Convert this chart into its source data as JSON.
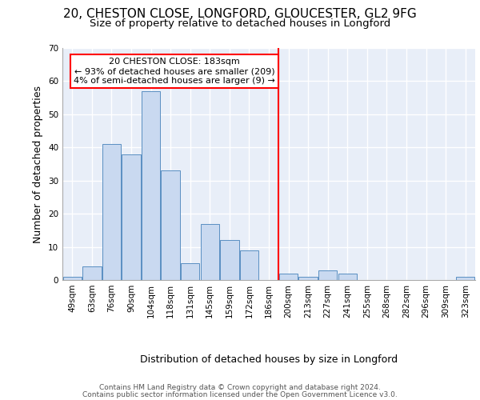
{
  "title_line1": "20, CHESTON CLOSE, LONGFORD, GLOUCESTER, GL2 9FG",
  "title_line2": "Size of property relative to detached houses in Longford",
  "xlabel": "Distribution of detached houses by size in Longford",
  "ylabel": "Number of detached properties",
  "footer_line1": "Contains HM Land Registry data © Crown copyright and database right 2024.",
  "footer_line2": "Contains public sector information licensed under the Open Government Licence v3.0.",
  "bin_labels": [
    "49sqm",
    "63sqm",
    "76sqm",
    "90sqm",
    "104sqm",
    "118sqm",
    "131sqm",
    "145sqm",
    "159sqm",
    "172sqm",
    "186sqm",
    "200sqm",
    "213sqm",
    "227sqm",
    "241sqm",
    "255sqm",
    "268sqm",
    "282sqm",
    "296sqm",
    "309sqm",
    "323sqm"
  ],
  "bar_values": [
    1,
    4,
    41,
    38,
    57,
    33,
    5,
    17,
    12,
    9,
    0,
    2,
    1,
    3,
    2,
    0,
    0,
    0,
    0,
    0,
    1
  ],
  "bar_color": "#c9d9f0",
  "bar_edgecolor": "#5a8fc2",
  "vline_pos": 10.5,
  "property_label": "20 CHESTON CLOSE: 183sqm",
  "annotation_line1": "← 93% of detached houses are smaller (209)",
  "annotation_line2": "4% of semi-detached houses are larger (9) →",
  "vline_color": "red",
  "ylim": [
    0,
    70
  ],
  "yticks": [
    0,
    10,
    20,
    30,
    40,
    50,
    60,
    70
  ],
  "plot_background": "#e8eef8",
  "grid_color": "white",
  "title_fontsize": 11,
  "subtitle_fontsize": 9.5,
  "axis_label_fontsize": 9,
  "tick_fontsize": 7.5,
  "footer_fontsize": 6.5
}
